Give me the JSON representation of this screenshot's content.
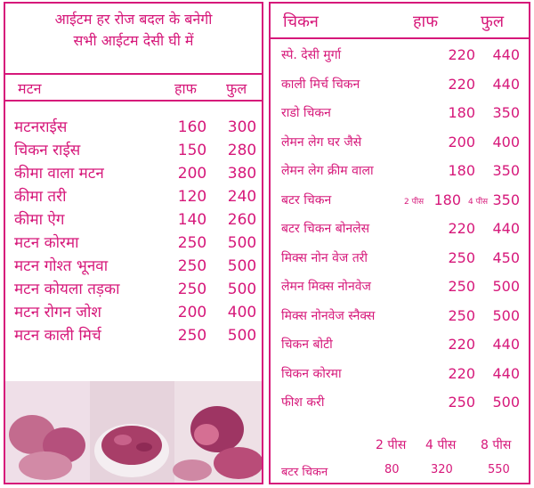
{
  "notice": {
    "line1": "आईटम हर रोज बदल के बनेगी",
    "line2": "सभी आईटम देसी घी में"
  },
  "mutton": {
    "title": "मटन",
    "half_label": "हाफ",
    "full_label": "फुल",
    "items": [
      {
        "name": "मटनराईस",
        "half": "160",
        "full": "300"
      },
      {
        "name": "चिकन राईस",
        "half": "150",
        "full": "280"
      },
      {
        "name": "कीमा वाला मटन",
        "half": "200",
        "full": "380"
      },
      {
        "name": "कीमा तरी",
        "half": "120",
        "full": "240"
      },
      {
        "name": "कीमा ऐग",
        "half": "140",
        "full": "260"
      },
      {
        "name": "मटन कोरमा",
        "half": "250",
        "full": "500"
      },
      {
        "name": "मटन गोश्त भूनवा",
        "half": "250",
        "full": "500"
      },
      {
        "name": "मटन कोयला तड़का",
        "half": "250",
        "full": "500"
      },
      {
        "name": "मटन रोगन जोश",
        "half": "200",
        "full": "400"
      },
      {
        "name": "मटन काली मिर्च",
        "half": "250",
        "full": "500"
      }
    ]
  },
  "chicken": {
    "title": "चिकन",
    "half_label": "हाफ",
    "full_label": "फुल",
    "items": [
      {
        "name": "स्पे. देसी मुर्गा",
        "half": "220",
        "full": "440"
      },
      {
        "name": "काली मिर्च चिकन",
        "half": "220",
        "full": "440"
      },
      {
        "name": "राडो चिकन",
        "half": "180",
        "full": "350"
      },
      {
        "name": "लेमन लेग घर जैसे",
        "half": "200",
        "full": "400"
      },
      {
        "name": "लेमन लेग क्रीम वाला",
        "half": "180",
        "full": "350"
      },
      {
        "name": "बटर चिकन",
        "half": "180",
        "full": "350",
        "half_note": "2 पीस",
        "full_note": "4 पीस"
      },
      {
        "name": "बटर चिकन बोनलेस",
        "half": "220",
        "full": "440"
      },
      {
        "name": "मिक्स नोन वेज तरी",
        "half": "250",
        "full": "450"
      },
      {
        "name": "लेमन मिक्स नोनवेज",
        "half": "250",
        "full": "500"
      },
      {
        "name": "मिक्स नोनवेज स्नैक्स",
        "half": "250",
        "full": "500"
      },
      {
        "name": "चिकन बोटी",
        "half": "220",
        "full": "440"
      },
      {
        "name": "चिकन कोरमा",
        "half": "220",
        "full": "440"
      },
      {
        "name": "फीश करी",
        "half": "250",
        "full": "500"
      }
    ],
    "pieces": {
      "col1": "2 पीस",
      "col2": "4 पीस",
      "col3": "8 पीस",
      "item": "बटर चिकन",
      "p1": "80",
      "p2": "320",
      "p3": "550"
    }
  },
  "colors": {
    "accent": "#d6187a"
  }
}
